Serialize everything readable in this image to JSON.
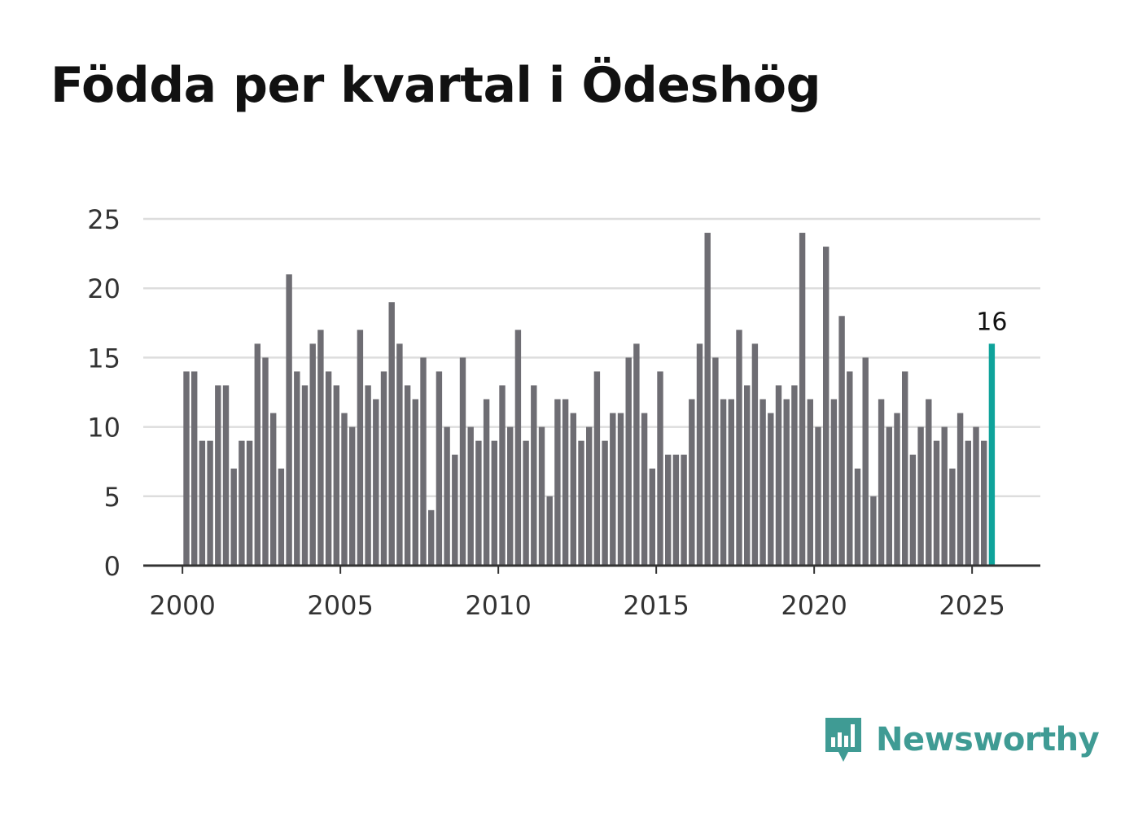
{
  "title": "Födda per kvartal i Ödeshög",
  "brand": {
    "name": "Newsworthy"
  },
  "colors": {
    "bar": "#6e6d73",
    "highlight": "#0fa39b",
    "grid": "#dddddd",
    "axis": "#333333",
    "brand": "#3f9b94"
  },
  "chart_data": {
    "type": "bar",
    "title": "Födda per kvartal i Ödeshög",
    "xlabel": "",
    "ylabel": "",
    "ylim": [
      0,
      25
    ],
    "yticks": [
      0,
      5,
      10,
      15,
      20,
      25
    ],
    "xticks": [
      "2000",
      "2005",
      "2010",
      "2015",
      "2020",
      "2025"
    ],
    "start_year": 2000,
    "grid": true,
    "highlight_label": "16",
    "values": [
      14,
      14,
      9,
      9,
      13,
      13,
      7,
      9,
      9,
      16,
      15,
      11,
      7,
      21,
      14,
      13,
      16,
      17,
      14,
      13,
      11,
      10,
      17,
      13,
      12,
      14,
      19,
      16,
      13,
      12,
      15,
      4,
      14,
      10,
      8,
      15,
      10,
      9,
      12,
      9,
      13,
      10,
      17,
      9,
      13,
      10,
      5,
      12,
      12,
      11,
      9,
      10,
      14,
      9,
      11,
      11,
      15,
      16,
      11,
      7,
      14,
      8,
      8,
      8,
      12,
      16,
      24,
      15,
      12,
      12,
      17,
      13,
      16,
      12,
      11,
      13,
      12,
      13,
      24,
      12,
      10,
      23,
      12,
      18,
      14,
      7,
      15,
      5,
      12,
      10,
      11,
      14,
      8,
      10,
      12,
      9,
      10,
      7,
      11,
      9,
      10,
      9,
      16
    ]
  }
}
